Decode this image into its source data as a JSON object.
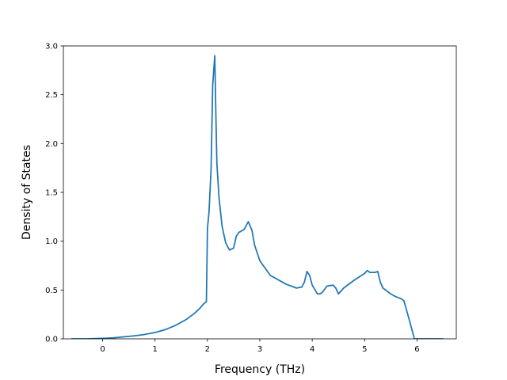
{
  "chart_data": {
    "type": "line",
    "title": "",
    "xlabel": "Frequency (THz)",
    "ylabel": "Density of States",
    "xlim": [
      -0.75,
      6.75
    ],
    "ylim": [
      0.0,
      3.0
    ],
    "xticks": [
      0,
      1,
      2,
      3,
      4,
      5,
      6
    ],
    "xtick_labels": [
      "0",
      "1",
      "2",
      "3",
      "4",
      "5",
      "6"
    ],
    "yticks": [
      0.0,
      0.5,
      1.0,
      1.5,
      2.0,
      2.5,
      3.0
    ],
    "ytick_labels": [
      "0.0",
      "0.5",
      "1.0",
      "1.5",
      "2.0",
      "2.5",
      "3.0"
    ],
    "grid": false,
    "series": [
      {
        "color": "#1f77b4",
        "x": [
          -0.6,
          -0.3,
          0.0,
          0.2,
          0.4,
          0.6,
          0.8,
          1.0,
          1.2,
          1.4,
          1.6,
          1.75,
          1.85,
          1.93,
          1.98,
          2.0,
          2.03,
          2.07,
          2.1,
          2.12,
          2.14,
          2.155,
          2.18,
          2.22,
          2.28,
          2.35,
          2.42,
          2.5,
          2.55,
          2.6,
          2.7,
          2.78,
          2.85,
          2.9,
          2.95,
          3.0,
          3.2,
          3.5,
          3.7,
          3.8,
          3.85,
          3.9,
          3.95,
          4.0,
          4.1,
          4.15,
          4.2,
          4.28,
          4.4,
          4.45,
          4.5,
          4.6,
          4.8,
          5.0,
          5.05,
          5.1,
          5.2,
          5.25,
          5.3,
          5.35,
          5.5,
          5.6,
          5.7,
          5.75,
          5.85,
          5.95,
          6.0,
          6.5
        ],
        "y": [
          0.0,
          0.0,
          0.005,
          0.01,
          0.02,
          0.03,
          0.045,
          0.065,
          0.095,
          0.14,
          0.2,
          0.26,
          0.31,
          0.36,
          0.38,
          1.13,
          1.3,
          1.75,
          2.6,
          2.75,
          2.9,
          2.45,
          1.8,
          1.45,
          1.15,
          0.98,
          0.91,
          0.93,
          1.05,
          1.09,
          1.12,
          1.2,
          1.11,
          0.96,
          0.88,
          0.8,
          0.65,
          0.56,
          0.52,
          0.53,
          0.58,
          0.69,
          0.65,
          0.55,
          0.46,
          0.46,
          0.48,
          0.54,
          0.55,
          0.52,
          0.46,
          0.52,
          0.6,
          0.67,
          0.7,
          0.68,
          0.68,
          0.69,
          0.58,
          0.52,
          0.46,
          0.43,
          0.41,
          0.39,
          0.2,
          0.0,
          0.0,
          0.0
        ]
      }
    ]
  }
}
